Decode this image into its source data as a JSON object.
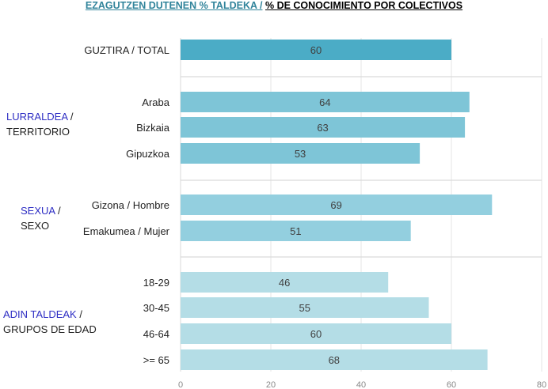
{
  "title_eu": "EZAGUTZEN DUTENEN % TALDEKA /",
  "title_es": "% DE CONOCIMIENTO POR COLECTIVOS",
  "groups": [
    {
      "name_eu": "LURRALDEA",
      "sep": " /",
      "name_es": "TERRITORIO"
    },
    {
      "name_eu": "SEXUA",
      "sep": " /",
      "name_es": "SEXO"
    },
    {
      "name_eu": "ADIN TALDEAK",
      "sep": " /",
      "name_es": "GRUPOS DE EDAD"
    }
  ],
  "chart_data": {
    "type": "bar",
    "orientation": "horizontal",
    "categories": [
      "GUZTIRA / TOTAL",
      "Araba",
      "Bizkaia",
      "Gipuzkoa",
      "Gizona / Hombre",
      "Emakumea / Mujer",
      "18-29",
      "30-45",
      "46-64",
      ">= 65"
    ],
    "values": [
      60,
      64,
      63,
      53,
      69,
      51,
      46,
      55,
      60,
      68
    ],
    "colors": [
      "#4bacc6",
      "#7ec5d7",
      "#7ec5d7",
      "#7ec5d7",
      "#93cfdf",
      "#93cfdf",
      "#b4dde6",
      "#b4dde6",
      "#b4dde6",
      "#b4dde6"
    ],
    "xlim": [
      0,
      80
    ],
    "xticks": [
      0,
      20,
      40,
      60,
      80
    ],
    "grid": true,
    "data_labels": true
  }
}
